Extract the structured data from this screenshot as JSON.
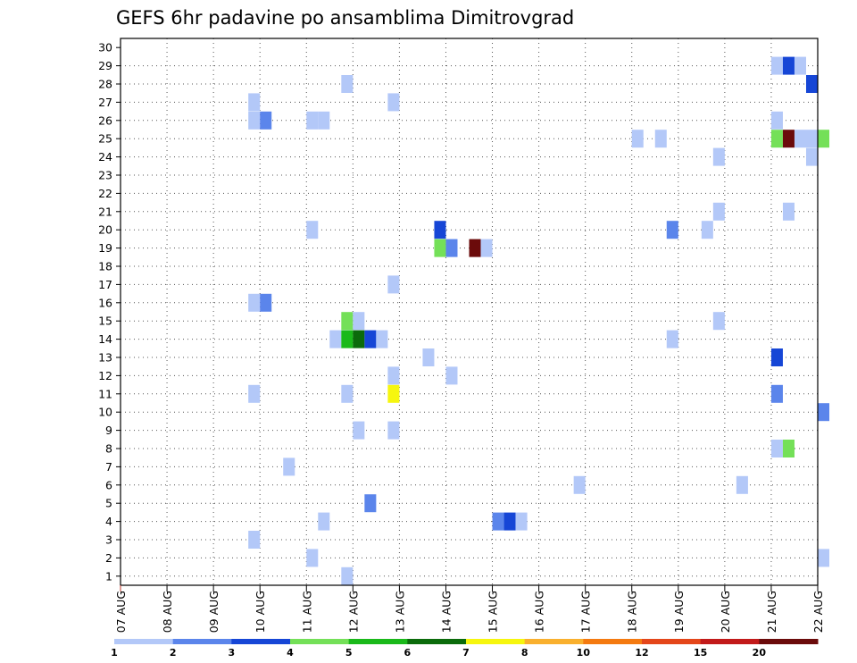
{
  "chart_data": {
    "type": "heatmap",
    "title": "GEFS 6hr padavine po ansamblima Dimitrovgrad",
    "xlabel": "",
    "ylabel": "",
    "x_ticks": [
      "07 AUG",
      "08 AUG",
      "09 AUG",
      "10 AUG",
      "11 AUG",
      "12 AUG",
      "13 AUG",
      "14 AUG",
      "15 AUG",
      "16 AUG",
      "17 AUG",
      "18 AUG",
      "19 AUG",
      "20 AUG",
      "21 AUG",
      "22 AUG"
    ],
    "y_ticks": [
      1,
      2,
      3,
      4,
      5,
      6,
      7,
      8,
      9,
      10,
      11,
      12,
      13,
      14,
      15,
      16,
      17,
      18,
      19,
      20,
      21,
      22,
      23,
      24,
      25,
      26,
      27,
      28,
      29,
      30
    ],
    "x_unit": "6-hour step from 07 AUG 00Z",
    "y_unit": "ensemble member",
    "grid": true,
    "colorbar": {
      "labels": [
        "1",
        "2",
        "3",
        "4",
        "5",
        "6",
        "7",
        "8",
        "10",
        "12",
        "15",
        "20"
      ],
      "colors": [
        "#b3c8f8",
        "#5b85eb",
        "#1646d6",
        "#74e058",
        "#1ab91a",
        "#0b6b0b",
        "#f6f60e",
        "#f9b02e",
        "#f47a10",
        "#e4461a",
        "#c21a1a",
        "#6b0b0b"
      ]
    },
    "cells": [
      {
        "x": 57,
        "y": 29,
        "c": 1
      },
      {
        "x": 58,
        "y": 29,
        "c": 3
      },
      {
        "x": 59,
        "y": 29,
        "c": 1
      },
      {
        "x": 20,
        "y": 28,
        "c": 1
      },
      {
        "x": 60,
        "y": 28,
        "c": 3
      },
      {
        "x": 12,
        "y": 27,
        "c": 1
      },
      {
        "x": 24,
        "y": 27,
        "c": 1
      },
      {
        "x": 12,
        "y": 26,
        "c": 1
      },
      {
        "x": 13,
        "y": 26,
        "c": 2
      },
      {
        "x": 17,
        "y": 26,
        "c": 1
      },
      {
        "x": 18,
        "y": 26,
        "c": 1
      },
      {
        "x": 57,
        "y": 26,
        "c": 1
      },
      {
        "x": 45,
        "y": 25,
        "c": 1
      },
      {
        "x": 47,
        "y": 25,
        "c": 1
      },
      {
        "x": 57,
        "y": 25,
        "c": 4
      },
      {
        "x": 58,
        "y": 25,
        "c": 12
      },
      {
        "x": 59,
        "y": 25,
        "c": 1
      },
      {
        "x": 60,
        "y": 25,
        "c": 1
      },
      {
        "x": 61,
        "y": 25,
        "c": 4
      },
      {
        "x": 52,
        "y": 24,
        "c": 1
      },
      {
        "x": 60,
        "y": 24,
        "c": 1
      },
      {
        "x": 52,
        "y": 21,
        "c": 1
      },
      {
        "x": 58,
        "y": 21,
        "c": 1
      },
      {
        "x": 17,
        "y": 20,
        "c": 1
      },
      {
        "x": 28,
        "y": 20,
        "c": 3
      },
      {
        "x": 48,
        "y": 20,
        "c": 2
      },
      {
        "x": 51,
        "y": 20,
        "c": 1
      },
      {
        "x": 28,
        "y": 19,
        "c": 4
      },
      {
        "x": 29,
        "y": 19,
        "c": 2
      },
      {
        "x": 31,
        "y": 19,
        "c": 12
      },
      {
        "x": 32,
        "y": 19,
        "c": 1
      },
      {
        "x": 24,
        "y": 17,
        "c": 1
      },
      {
        "x": 12,
        "y": 16,
        "c": 1
      },
      {
        "x": 13,
        "y": 16,
        "c": 2
      },
      {
        "x": 20,
        "y": 15,
        "c": 4
      },
      {
        "x": 21,
        "y": 15,
        "c": 1
      },
      {
        "x": 52,
        "y": 15,
        "c": 1
      },
      {
        "x": 19,
        "y": 14,
        "c": 1
      },
      {
        "x": 20,
        "y": 14,
        "c": 5
      },
      {
        "x": 21,
        "y": 14,
        "c": 6
      },
      {
        "x": 22,
        "y": 14,
        "c": 3
      },
      {
        "x": 23,
        "y": 14,
        "c": 1
      },
      {
        "x": 48,
        "y": 14,
        "c": 1
      },
      {
        "x": 27,
        "y": 13,
        "c": 1
      },
      {
        "x": 57,
        "y": 13,
        "c": 3
      },
      {
        "x": 24,
        "y": 12,
        "c": 1
      },
      {
        "x": 29,
        "y": 12,
        "c": 1
      },
      {
        "x": 12,
        "y": 11,
        "c": 1
      },
      {
        "x": 20,
        "y": 11,
        "c": 1
      },
      {
        "x": 24,
        "y": 11,
        "c": 7
      },
      {
        "x": 57,
        "y": 11,
        "c": 2
      },
      {
        "x": 61,
        "y": 10,
        "c": 2
      },
      {
        "x": 21,
        "y": 9,
        "c": 1
      },
      {
        "x": 24,
        "y": 9,
        "c": 1
      },
      {
        "x": 57,
        "y": 8,
        "c": 1
      },
      {
        "x": 58,
        "y": 8,
        "c": 4
      },
      {
        "x": 15,
        "y": 7,
        "c": 1
      },
      {
        "x": 40,
        "y": 6,
        "c": 1
      },
      {
        "x": 54,
        "y": 6,
        "c": 1
      },
      {
        "x": 22,
        "y": 5,
        "c": 2
      },
      {
        "x": 18,
        "y": 4,
        "c": 1
      },
      {
        "x": 33,
        "y": 4,
        "c": 2
      },
      {
        "x": 34,
        "y": 4,
        "c": 3
      },
      {
        "x": 35,
        "y": 4,
        "c": 1
      },
      {
        "x": 12,
        "y": 3,
        "c": 1
      },
      {
        "x": 17,
        "y": 2,
        "c": 1
      },
      {
        "x": 61,
        "y": 2,
        "c": 1
      },
      {
        "x": 20,
        "y": 1,
        "c": 1
      }
    ]
  }
}
